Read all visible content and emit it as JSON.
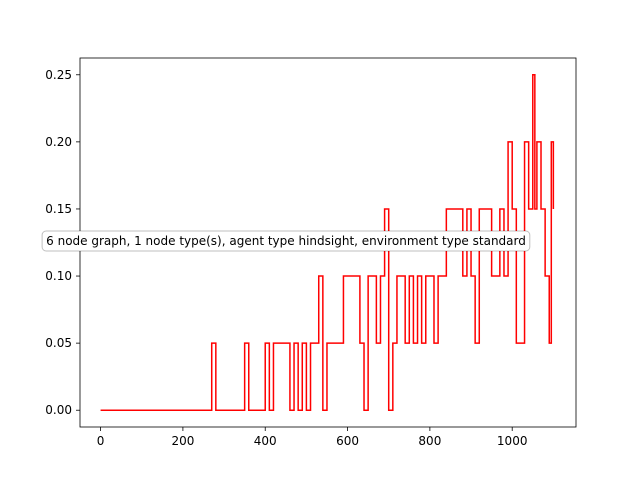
{
  "chart_data": {
    "type": "line",
    "title": "",
    "xlabel": "",
    "ylabel": "",
    "xlim": [
      -50,
      1155
    ],
    "ylim": [
      -0.0125,
      0.2625
    ],
    "xticks": [
      0,
      200,
      400,
      600,
      800,
      1000
    ],
    "xtick_labels": [
      "0",
      "200",
      "400",
      "600",
      "800",
      "1000"
    ],
    "yticks": [
      0.0,
      0.05,
      0.1,
      0.15,
      0.2,
      0.25
    ],
    "ytick_labels": [
      "0.00",
      "0.05",
      "0.10",
      "0.15",
      "0.20",
      "0.25"
    ],
    "grid": false,
    "series": [
      {
        "color": "#ff0000",
        "step": true,
        "x": [
          0,
          270,
          280,
          350,
          360,
          400,
          410,
          420,
          460,
          470,
          480,
          490,
          500,
          510,
          530,
          540,
          550,
          590,
          630,
          640,
          650,
          670,
          680,
          690,
          700,
          710,
          720,
          740,
          750,
          760,
          770,
          780,
          790,
          810,
          820,
          830,
          840,
          880,
          890,
          900,
          910,
          920,
          950,
          970,
          980,
          990,
          1000,
          1010,
          1030,
          1040,
          1050,
          1055,
          1060,
          1070,
          1080,
          1090,
          1095,
          1100
        ],
        "y": [
          0.0,
          0.05,
          0.0,
          0.05,
          0.0,
          0.05,
          0.0,
          0.05,
          0.0,
          0.05,
          0.0,
          0.05,
          0.0,
          0.05,
          0.1,
          0.0,
          0.05,
          0.1,
          0.05,
          0.0,
          0.1,
          0.05,
          0.1,
          0.15,
          0.0,
          0.05,
          0.1,
          0.05,
          0.1,
          0.05,
          0.1,
          0.05,
          0.1,
          0.05,
          0.1,
          0.1,
          0.15,
          0.1,
          0.15,
          0.1,
          0.05,
          0.15,
          0.1,
          0.15,
          0.1,
          0.2,
          0.15,
          0.05,
          0.2,
          0.15,
          0.25,
          0.15,
          0.2,
          0.15,
          0.1,
          0.05,
          0.2,
          0.15
        ]
      }
    ],
    "annotation": "6 node graph, 1 node type(s), agent type hindsight, environment type standard"
  }
}
